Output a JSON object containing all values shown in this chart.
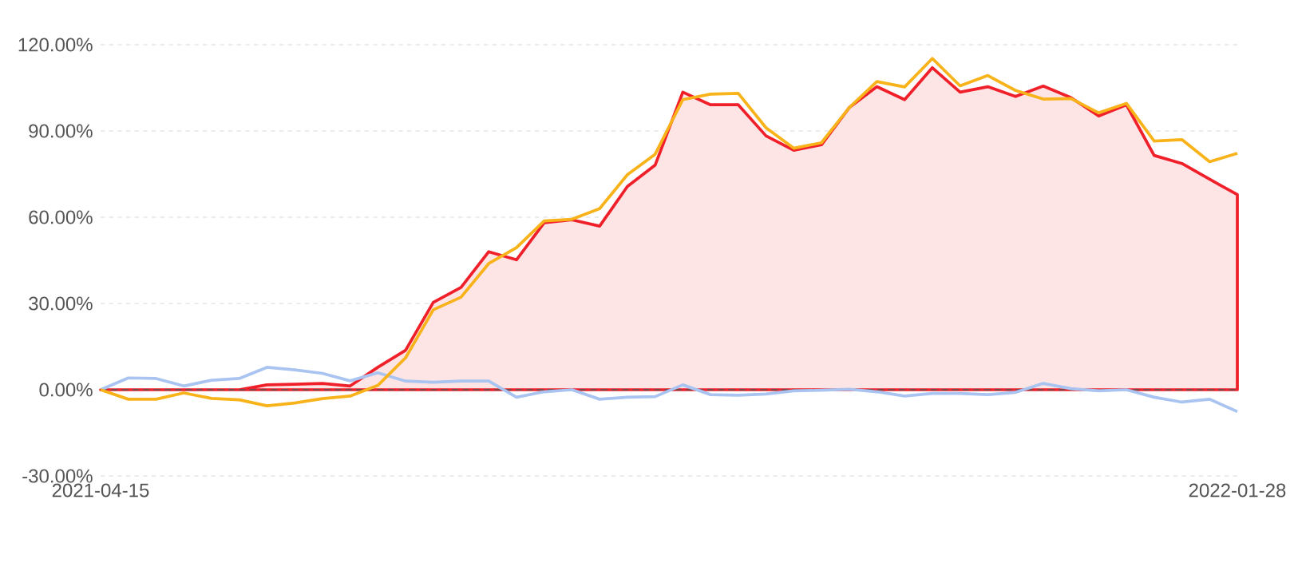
{
  "chart_data": {
    "type": "line",
    "categories": [
      "2021-04-15",
      null,
      null,
      null,
      null,
      null,
      null,
      null,
      null,
      null,
      null,
      null,
      null,
      null,
      null,
      null,
      null,
      null,
      null,
      null,
      null,
      null,
      null,
      null,
      null,
      null,
      null,
      null,
      null,
      null,
      null,
      null,
      null,
      null,
      null,
      null,
      null,
      null,
      null,
      null,
      null,
      "2022-01-28"
    ],
    "series": [
      {
        "type": "area",
        "color": "#f0202a",
        "values": [
          0,
          0,
          0,
          0,
          0,
          0,
          1.7,
          1.9,
          2.2,
          1.3,
          7.8,
          13.7,
          30.4,
          35.6,
          48,
          45.2,
          58.1,
          59.1,
          56.9,
          70.7,
          78.1,
          103.5,
          99.1,
          99.1,
          88.3,
          83.3,
          85.2,
          98.1,
          105.4,
          100.9,
          112,
          103.5,
          105.4,
          102,
          105.6,
          101.6,
          95.2,
          99.1,
          81.5,
          78.7,
          73.2,
          67.9
        ]
      },
      {
        "type": "line",
        "color": "#a9c4f0",
        "values": [
          0,
          4.1,
          3.9,
          1.3,
          3.3,
          3.9,
          7.8,
          6.9,
          5.7,
          3.1,
          5.9,
          3,
          2.6,
          3,
          3,
          -2.6,
          -0.7,
          0,
          -3.3,
          -2.6,
          -2.4,
          1.7,
          -1.7,
          -1.9,
          -1.5,
          -0.4,
          -0.2,
          0.2,
          -0.7,
          -2.2,
          -1.3,
          -1.3,
          -1.7,
          -0.9,
          2.2,
          0.4,
          -0.4,
          0,
          -2.6,
          -4.3,
          -3.3,
          -7.6
        ]
      },
      {
        "type": "line",
        "color": "#f8b31a",
        "values": [
          0,
          -3.3,
          -3.3,
          -1.1,
          -3,
          -3.5,
          -5.6,
          -4.6,
          -3.1,
          -2.2,
          1.5,
          11.1,
          27.8,
          32.2,
          43.9,
          49.4,
          58.7,
          59.3,
          63,
          74.8,
          81.9,
          100.9,
          102.8,
          103.1,
          91.1,
          84,
          85.9,
          98.1,
          107.2,
          105.3,
          115.2,
          105.7,
          109.3,
          104.1,
          101.1,
          101.3,
          96.3,
          99.6,
          86.5,
          87,
          79.3,
          82.2
        ]
      }
    ],
    "ylim": [
      -30,
      120
    ],
    "yticks": [
      {
        "value": -30,
        "label": "-30.00%"
      },
      {
        "value": 0,
        "label": "0.00%"
      },
      {
        "value": 30,
        "label": "30.00%"
      },
      {
        "value": 60,
        "label": "60.00%"
      },
      {
        "value": 90,
        "label": "90.00%"
      },
      {
        "value": 120,
        "label": "120.00%"
      }
    ],
    "grid": "y",
    "ref_lines": [
      {
        "axis": "y",
        "value": 0,
        "color": "#555555",
        "line_style": "dashed"
      }
    ],
    "marker": "none",
    "line_style": "solid"
  }
}
